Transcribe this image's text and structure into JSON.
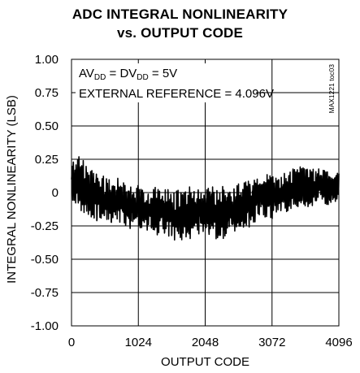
{
  "chart_data": {
    "type": "line",
    "title_line1": "ADC INTEGRAL NONLINEARITY",
    "title_line2": "vs. OUTPUT CODE",
    "xlabel": "OUTPUT CODE",
    "ylabel": "INTEGRAL NONLINEARITY (LSB)",
    "xlim": [
      0,
      4096
    ],
    "ylim": [
      -1.0,
      1.0
    ],
    "xticks": [
      0,
      1024,
      2048,
      3072,
      4096
    ],
    "yticks": [
      1.0,
      0.75,
      0.5,
      0.25,
      0,
      -0.25,
      -0.5,
      -0.75,
      -1.0
    ],
    "ytick_labels": [
      "1.00",
      "0.75",
      "0.50",
      "0.25",
      "0",
      "-0.25",
      "-0.50",
      "-0.75",
      "-1.00"
    ],
    "grid": true,
    "annotation": {
      "line1_parts": [
        "AV",
        "DD",
        " = DV",
        "DD",
        " = 5V"
      ],
      "line2": "EXTERNAL REFERENCE = 4.096V"
    },
    "figure_tag": "MAX1221 toc03",
    "envelope": {
      "x": [
        0,
        128,
        256,
        384,
        512,
        640,
        768,
        896,
        1024,
        1152,
        1280,
        1408,
        1536,
        1664,
        1792,
        1920,
        2048,
        2176,
        2304,
        2432,
        2560,
        2688,
        2816,
        2944,
        3072,
        3200,
        3328,
        3456,
        3584,
        3712,
        3840,
        3968,
        4096
      ],
      "max": [
        0.25,
        0.3,
        0.22,
        0.18,
        0.14,
        0.12,
        0.1,
        0.08,
        0.08,
        0.06,
        0.05,
        0.05,
        0.04,
        0.04,
        0.06,
        0.04,
        0.03,
        0.05,
        0.06,
        0.06,
        0.08,
        0.1,
        0.13,
        0.14,
        0.14,
        0.16,
        0.17,
        0.2,
        0.2,
        0.19,
        0.2,
        0.17,
        0.15
      ],
      "min": [
        -0.1,
        -0.15,
        -0.2,
        -0.25,
        -0.24,
        -0.25,
        -0.25,
        -0.3,
        -0.28,
        -0.3,
        -0.32,
        -0.33,
        -0.35,
        -0.38,
        -0.4,
        -0.36,
        -0.33,
        -0.35,
        -0.38,
        -0.3,
        -0.3,
        -0.28,
        -0.22,
        -0.2,
        -0.2,
        -0.18,
        -0.15,
        -0.12,
        -0.12,
        -0.1,
        -0.08,
        -0.1,
        -0.05
      ]
    }
  }
}
